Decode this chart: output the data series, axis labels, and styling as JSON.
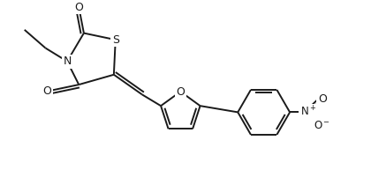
{
  "bg_color": "#ffffff",
  "line_color": "#1a1a1a",
  "line_width": 1.4,
  "font_size": 8.5,
  "figsize": [
    4.2,
    1.93
  ],
  "dpi": 100,
  "xlim": [
    0,
    10.5
  ],
  "ylim": [
    0,
    5.0
  ]
}
